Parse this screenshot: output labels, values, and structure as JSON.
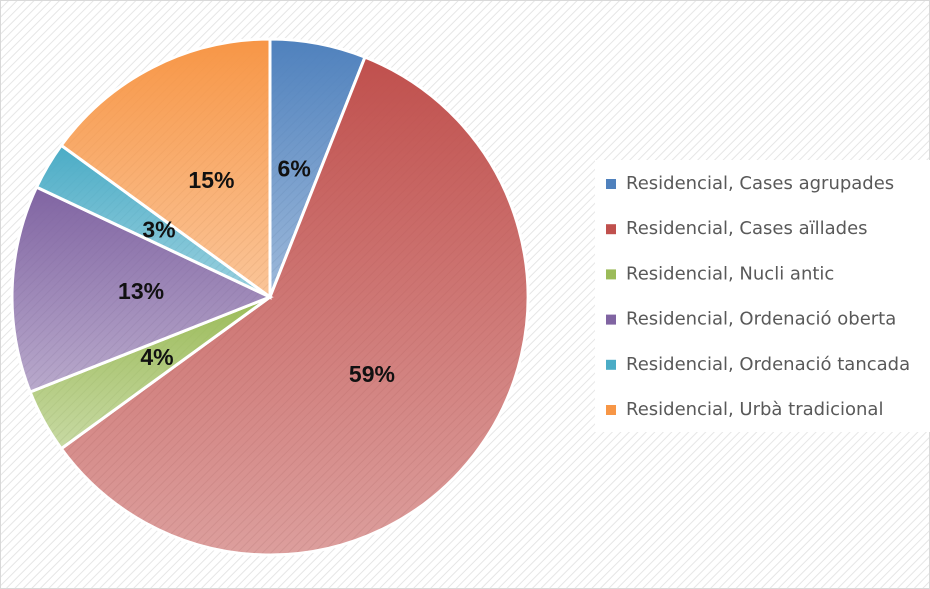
{
  "chart_data": {
    "type": "pie",
    "categories": [
      "Residencial, Cases agrupades",
      "Residencial, Cases aïllades",
      "Residencial, Nucli antic",
      "Residencial, Ordenació oberta",
      "Residencial, Ordenació tancada",
      "Residencial, Urbà tradicional"
    ],
    "values": [
      6,
      59,
      4,
      13,
      3,
      15
    ],
    "value_labels": [
      "6%",
      "59%",
      "4%",
      "13%",
      "3%",
      "15%"
    ],
    "colors": [
      "#4f81bd",
      "#c0504d",
      "#9bbb59",
      "#8064a2",
      "#4bacc6",
      "#f79646"
    ],
    "legend": "right"
  }
}
